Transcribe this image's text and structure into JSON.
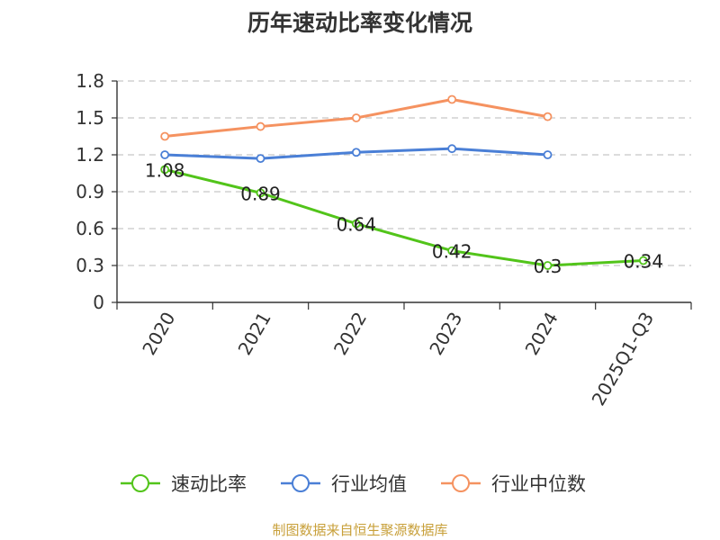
{
  "chart_data": {
    "type": "line",
    "title": "历年速动比率变化情况",
    "categories": [
      "2020",
      "2021",
      "2022",
      "2023",
      "2024",
      "2025Q1-Q3"
    ],
    "ylim": [
      0,
      1.8
    ],
    "yticks": [
      "0",
      "0.3",
      "0.6",
      "0.9",
      "1.2",
      "1.5",
      "1.8"
    ],
    "grid": true,
    "legend_position": "bottom",
    "series": [
      {
        "name": "速动比率",
        "color": "#52c41a",
        "values": [
          1.08,
          0.89,
          0.64,
          0.42,
          0.3,
          0.34
        ],
        "data_labels": [
          "1.08",
          "0.89",
          "0.64",
          "0.42",
          "0.3",
          "0.34"
        ]
      },
      {
        "name": "行业均值",
        "color": "#4a7fd6",
        "values": [
          1.2,
          1.17,
          1.22,
          1.25,
          1.2,
          null
        ]
      },
      {
        "name": "行业中位数",
        "color": "#f59260",
        "values": [
          1.35,
          1.43,
          1.5,
          1.65,
          1.51,
          null
        ]
      }
    ]
  },
  "source": "制图数据来自恒生聚源数据库"
}
